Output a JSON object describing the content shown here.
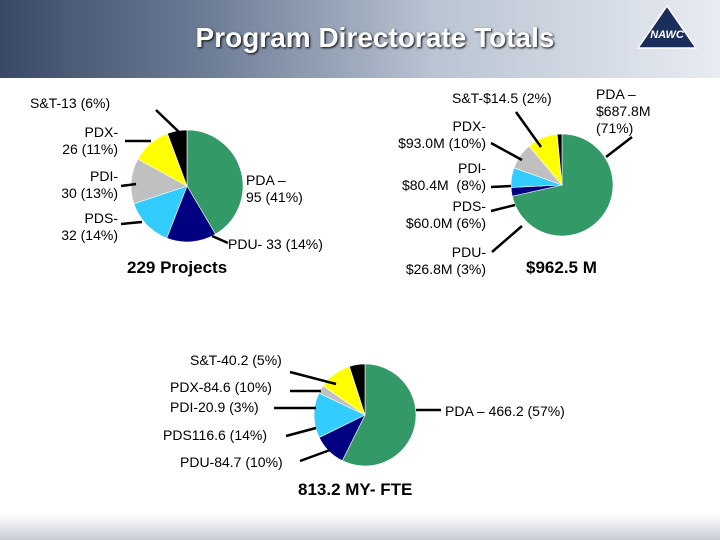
{
  "title": "Program Directorate Totals",
  "logo": "NAWC",
  "chart_data": [
    {
      "type": "pie",
      "values": [
        95,
        33,
        32,
        30,
        26,
        13
      ],
      "value_labels": [
        "PDA –\n95 (41%)",
        "PDU- 33 (14%)",
        "PDS-\n32 (14%)",
        "PDI-\n30 (13%)",
        "PDX-\n26 (11%)",
        "S&T-13 (6%)"
      ],
      "colors": [
        "#339966",
        "#000080",
        "#33ccff",
        "#c0c0c0",
        "#ffff00",
        "#000000"
      ],
      "total": "229 Projects"
    },
    {
      "type": "pie",
      "values": [
        687.8,
        26.8,
        60.0,
        80.4,
        93.0,
        14.5
      ],
      "value_labels": [
        "PDA –\n$687.8M\n(71%)",
        "PDU-\n$26.8M (3%)",
        "PDS-\n$60.0M (6%)",
        "PDI-\n$80.4M  (8%)",
        "PDX-\n$93.0M (10%)",
        "S&T-$14.5 (2%)"
      ],
      "colors": [
        "#339966",
        "#000080",
        "#33ccff",
        "#c0c0c0",
        "#ffff00",
        "#000000"
      ],
      "total": "$962.5 M"
    },
    {
      "type": "pie",
      "values": [
        466.2,
        84.7,
        116.6,
        20.9,
        84.6,
        40.2
      ],
      "value_labels": [
        "PDA – 466.2 (57%)",
        "PDU-84.7 (10%)",
        "PDS116.6 (14%)",
        "PDI-20.9 (3%)",
        "PDX-84.6 (10%)",
        "S&T-40.2 (5%)"
      ],
      "colors": [
        "#339966",
        "#000080",
        "#33ccff",
        "#c0c0c0",
        "#ffff00",
        "#000000"
      ],
      "total": "813.2 MY- FTE"
    }
  ]
}
